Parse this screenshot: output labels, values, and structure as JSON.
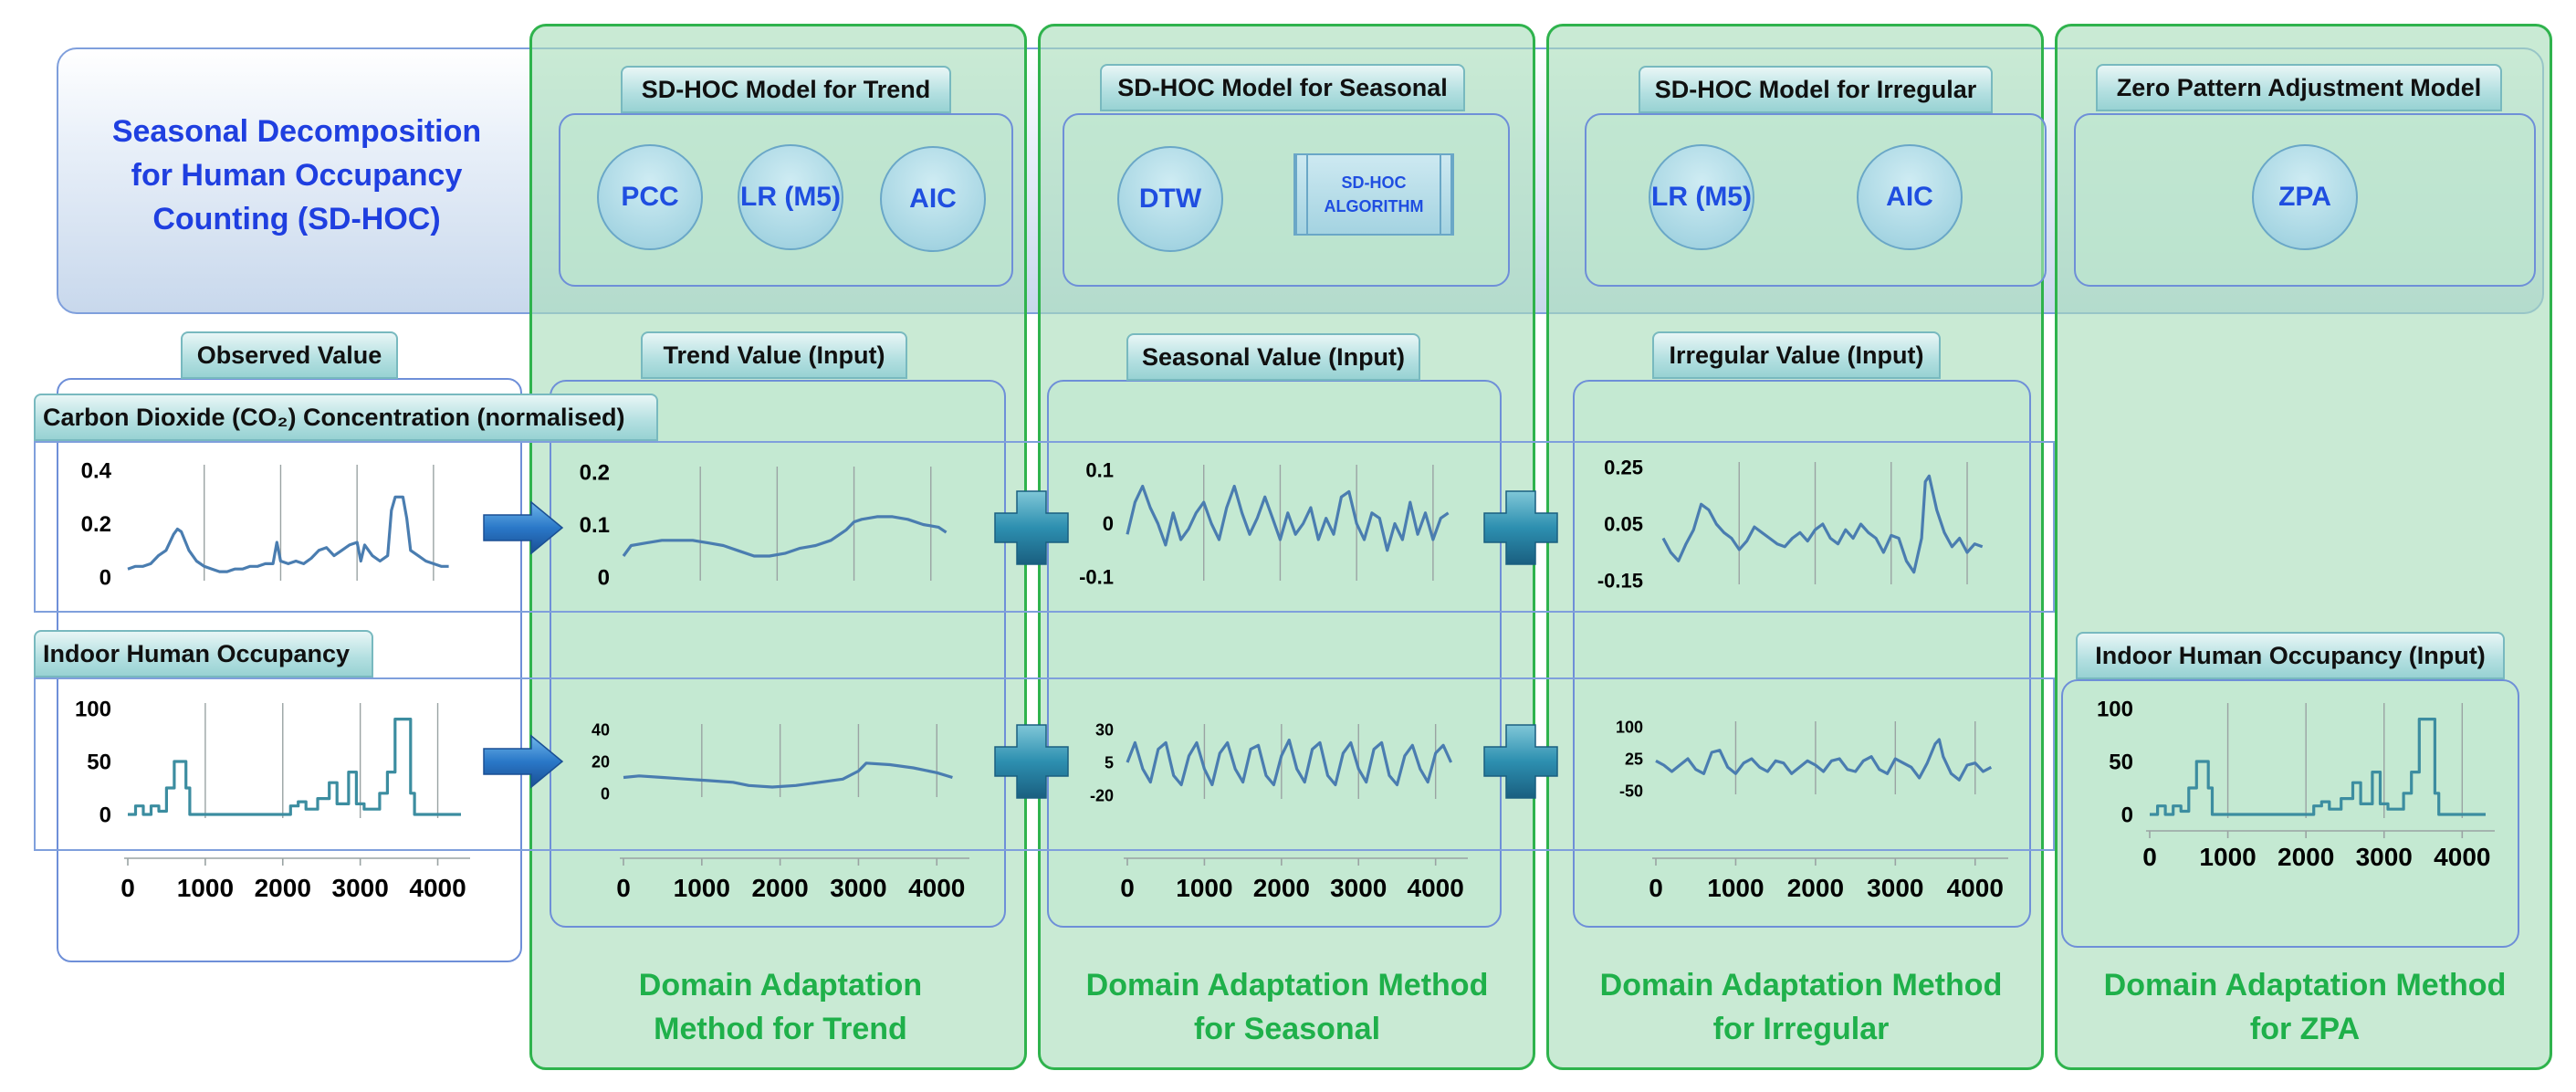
{
  "title": "Seasonal Decomposition for Human Occupancy Counting (SD-HOC)",
  "colors": {
    "accent_blue": "#1f3fe0",
    "panel_green": "#2fb34d",
    "footer_green": "#1fb04a",
    "line": "#4a7db0"
  },
  "models": {
    "trend": {
      "label": "SD-HOC Model for Trend",
      "items": [
        "PCC",
        "LR (M5)",
        "AIC"
      ]
    },
    "seasonal": {
      "label": "SD-HOC Model for Seasonal",
      "items": [
        "DTW"
      ],
      "algorithm": "SD-HOC ALGORITHM"
    },
    "irregular": {
      "label": "SD-HOC Model for Irregular",
      "items": [
        "LR (M5)",
        "AIC"
      ]
    },
    "zpa": {
      "label": "Zero Pattern Adjustment Model",
      "items": [
        "ZPA"
      ]
    }
  },
  "section_labels": {
    "observed": "Observed Value",
    "trend": "Trend Value (Input)",
    "seasonal": "Seasonal Value (Input)",
    "irregular": "Irregular Value (Input)",
    "zpa_input": "Indoor Human Occupancy (Input)"
  },
  "rows": {
    "co2": "Carbon Dioxide (CO₂) Concentration (normalised)",
    "occupancy": "Indoor Human Occupancy"
  },
  "footers": {
    "trend": "Domain Adaptation Method for Trend",
    "seasonal": "Domain Adaptation Method for Seasonal",
    "irregular": "Domain Adaptation Method for Irregular",
    "zpa": "Domain Adaptation Method for ZPA"
  },
  "icons": [
    "arrow-right-icon",
    "plus-icon"
  ],
  "chart_data": [
    {
      "type": "line",
      "id": "observed-co2",
      "xlim": [
        0,
        4300
      ],
      "yticks": [
        "0.4",
        "0.2",
        "0"
      ],
      "ylim": [
        0,
        0.4
      ],
      "x": [
        0,
        100,
        200,
        300,
        400,
        500,
        600,
        650,
        700,
        800,
        900,
        1000,
        1100,
        1200,
        1300,
        1400,
        1500,
        1600,
        1700,
        1800,
        1900,
        1950,
        2000,
        2100,
        2200,
        2300,
        2400,
        2500,
        2600,
        2700,
        2800,
        2900,
        3000,
        3050,
        3100,
        3200,
        3300,
        3400,
        3450,
        3500,
        3600,
        3650,
        3700,
        3800,
        3900,
        4000,
        4100,
        4200
      ],
      "y": [
        0.03,
        0.04,
        0.04,
        0.05,
        0.08,
        0.1,
        0.16,
        0.18,
        0.17,
        0.1,
        0.06,
        0.04,
        0.03,
        0.02,
        0.02,
        0.03,
        0.03,
        0.04,
        0.04,
        0.05,
        0.05,
        0.13,
        0.06,
        0.05,
        0.06,
        0.05,
        0.07,
        0.1,
        0.11,
        0.08,
        0.1,
        0.12,
        0.13,
        0.06,
        0.12,
        0.08,
        0.06,
        0.08,
        0.25,
        0.3,
        0.3,
        0.22,
        0.1,
        0.08,
        0.06,
        0.05,
        0.04,
        0.04
      ]
    },
    {
      "type": "line",
      "id": "trend-co2",
      "xlim": [
        0,
        4300
      ],
      "yticks": [
        "0.2",
        "0.1",
        "0"
      ],
      "ylim": [
        0,
        0.2
      ],
      "x": [
        0,
        100,
        300,
        500,
        700,
        900,
        1100,
        1300,
        1500,
        1700,
        1900,
        2100,
        2300,
        2500,
        2700,
        2900,
        3000,
        3100,
        3300,
        3500,
        3700,
        3900,
        4100,
        4200
      ],
      "y": [
        0.04,
        0.06,
        0.065,
        0.07,
        0.07,
        0.07,
        0.065,
        0.06,
        0.05,
        0.04,
        0.04,
        0.045,
        0.055,
        0.06,
        0.07,
        0.09,
        0.105,
        0.11,
        0.115,
        0.115,
        0.11,
        0.1,
        0.095,
        0.085
      ]
    },
    {
      "type": "line",
      "id": "seasonal-co2",
      "xlim": [
        0,
        4300
      ],
      "yticks": [
        "0.1",
        "0",
        "-0.1"
      ],
      "ylim": [
        -0.1,
        0.1
      ],
      "x": [
        0,
        100,
        200,
        300,
        400,
        500,
        600,
        700,
        800,
        900,
        1000,
        1100,
        1200,
        1300,
        1400,
        1500,
        1600,
        1700,
        1800,
        1900,
        2000,
        2100,
        2200,
        2300,
        2400,
        2500,
        2600,
        2700,
        2800,
        2900,
        3000,
        3100,
        3200,
        3300,
        3400,
        3500,
        3600,
        3700,
        3800,
        3900,
        4000,
        4100,
        4200
      ],
      "y": [
        -0.02,
        0.04,
        0.07,
        0.03,
        0.0,
        -0.04,
        0.02,
        -0.03,
        -0.01,
        0.02,
        0.04,
        0.0,
        -0.03,
        0.03,
        0.07,
        0.02,
        -0.02,
        0.01,
        0.05,
        0.01,
        -0.03,
        0.02,
        -0.02,
        0.0,
        0.03,
        -0.03,
        0.01,
        -0.02,
        0.05,
        0.06,
        0.0,
        -0.03,
        0.02,
        0.01,
        -0.05,
        0.0,
        -0.03,
        0.04,
        -0.02,
        0.02,
        -0.03,
        0.01,
        0.02
      ]
    },
    {
      "type": "line",
      "id": "irregular-co2",
      "xlim": [
        0,
        4300
      ],
      "yticks": [
        "0.25",
        "0.05",
        "-0.15"
      ],
      "ylim": [
        -0.15,
        0.25
      ],
      "x": [
        0,
        100,
        200,
        300,
        400,
        500,
        600,
        700,
        800,
        900,
        1000,
        1100,
        1200,
        1300,
        1400,
        1500,
        1600,
        1700,
        1800,
        1900,
        2000,
        2100,
        2200,
        2300,
        2400,
        2500,
        2600,
        2700,
        2800,
        2900,
        3000,
        3100,
        3200,
        3300,
        3400,
        3450,
        3500,
        3600,
        3700,
        3800,
        3900,
        4000,
        4100,
        4200
      ],
      "y": [
        0.0,
        -0.05,
        -0.08,
        -0.02,
        0.03,
        0.12,
        0.1,
        0.05,
        0.02,
        0.0,
        -0.04,
        -0.01,
        0.04,
        0.02,
        0.0,
        -0.02,
        -0.03,
        0.0,
        0.02,
        -0.01,
        0.03,
        0.05,
        0.0,
        -0.02,
        0.03,
        0.0,
        0.05,
        0.02,
        0.0,
        -0.05,
        0.01,
        0.0,
        -0.08,
        -0.12,
        0.0,
        0.2,
        0.22,
        0.1,
        0.02,
        -0.03,
        0.0,
        -0.05,
        -0.02,
        -0.03
      ]
    },
    {
      "type": "line",
      "id": "observed-occupancy",
      "xlim": [
        0,
        4300
      ],
      "yticks": [
        "100",
        "50",
        "0"
      ],
      "ylim": [
        0,
        100
      ],
      "xticks": [
        "0",
        "1000",
        "2000",
        "3000",
        "4000"
      ],
      "x": [
        0,
        100,
        100,
        200,
        200,
        300,
        300,
        400,
        400,
        500,
        500,
        600,
        600,
        650,
        650,
        750,
        750,
        800,
        800,
        2100,
        2100,
        2200,
        2200,
        2300,
        2300,
        2450,
        2450,
        2600,
        2600,
        2700,
        2700,
        2850,
        2850,
        2950,
        2950,
        3050,
        3050,
        3250,
        3250,
        3350,
        3350,
        3450,
        3450,
        3550,
        3550,
        3650,
        3650,
        3700,
        3700,
        4300
      ],
      "y": [
        0,
        0,
        8,
        8,
        0,
        0,
        8,
        8,
        3,
        3,
        25,
        25,
        50,
        50,
        50,
        50,
        25,
        25,
        0,
        0,
        8,
        8,
        12,
        12,
        5,
        5,
        15,
        15,
        30,
        30,
        10,
        10,
        40,
        40,
        10,
        10,
        5,
        5,
        20,
        20,
        40,
        40,
        90,
        90,
        90,
        90,
        20,
        20,
        0,
        0
      ]
    },
    {
      "type": "line",
      "id": "trend-occupancy",
      "xlim": [
        0,
        4300
      ],
      "yticks": [
        "40",
        "20",
        "0"
      ],
      "ylim": [
        0,
        40
      ],
      "xticks": [
        "0",
        "1000",
        "2000",
        "3000",
        "4000"
      ],
      "x": [
        0,
        200,
        500,
        800,
        1100,
        1400,
        1600,
        1900,
        2200,
        2500,
        2800,
        3000,
        3100,
        3400,
        3700,
        4000,
        4200
      ],
      "y": [
        10,
        11,
        10,
        9,
        8,
        7,
        5,
        4,
        5,
        7,
        9,
        14,
        19,
        18,
        16,
        13,
        10
      ]
    },
    {
      "type": "line",
      "id": "seasonal-occupancy",
      "xlim": [
        0,
        4300
      ],
      "yticks": [
        "30",
        "5",
        "-20"
      ],
      "ylim": [
        -20,
        30
      ],
      "xticks": [
        "0",
        "1000",
        "2000",
        "3000",
        "4000"
      ],
      "x": [
        0,
        100,
        200,
        300,
        400,
        500,
        600,
        700,
        800,
        900,
        1000,
        1100,
        1200,
        1300,
        1400,
        1500,
        1600,
        1700,
        1800,
        1900,
        2000,
        2100,
        2200,
        2300,
        2400,
        2500,
        2600,
        2700,
        2800,
        2900,
        3000,
        3100,
        3200,
        3300,
        3400,
        3500,
        3600,
        3700,
        3800,
        3900,
        4000,
        4100,
        4200
      ],
      "y": [
        5,
        20,
        0,
        -10,
        15,
        20,
        -5,
        -12,
        10,
        20,
        0,
        -12,
        12,
        20,
        0,
        -10,
        15,
        18,
        -5,
        -12,
        10,
        22,
        0,
        -10,
        15,
        20,
        -5,
        -12,
        12,
        20,
        0,
        -10,
        15,
        20,
        -5,
        -12,
        10,
        18,
        0,
        -10,
        12,
        18,
        5
      ]
    },
    {
      "type": "line",
      "id": "irregular-occupancy",
      "xlim": [
        0,
        4300
      ],
      "yticks": [
        "100",
        "25",
        "-50"
      ],
      "ylim": [
        -50,
        100
      ],
      "xticks": [
        "0",
        "1000",
        "2000",
        "3000",
        "4000"
      ],
      "x": [
        0,
        100,
        200,
        300,
        400,
        500,
        600,
        700,
        800,
        900,
        1000,
        1100,
        1200,
        1300,
        1400,
        1500,
        1600,
        1700,
        1800,
        1900,
        2000,
        2100,
        2200,
        2300,
        2400,
        2500,
        2600,
        2700,
        2800,
        2900,
        3000,
        3100,
        3200,
        3300,
        3400,
        3500,
        3550,
        3600,
        3700,
        3800,
        3900,
        4000,
        4100,
        4200
      ],
      "y": [
        20,
        10,
        -5,
        10,
        25,
        0,
        -10,
        40,
        45,
        5,
        -10,
        15,
        25,
        5,
        -5,
        20,
        15,
        -10,
        5,
        20,
        10,
        -5,
        20,
        25,
        0,
        -5,
        20,
        30,
        0,
        -10,
        25,
        15,
        5,
        -20,
        15,
        60,
        70,
        30,
        -10,
        -25,
        10,
        15,
        -5,
        5
      ]
    },
    {
      "type": "line",
      "id": "zpa-occupancy",
      "xlim": [
        0,
        4300
      ],
      "yticks": [
        "100",
        "50",
        "0"
      ],
      "ylim": [
        0,
        100
      ],
      "xticks": [
        "0",
        "1000",
        "2000",
        "3000",
        "4000"
      ],
      "x": [
        0,
        100,
        100,
        200,
        200,
        300,
        300,
        400,
        400,
        500,
        500,
        600,
        600,
        650,
        650,
        750,
        750,
        800,
        800,
        2100,
        2100,
        2200,
        2200,
        2300,
        2300,
        2450,
        2450,
        2600,
        2600,
        2700,
        2700,
        2850,
        2850,
        2950,
        2950,
        3050,
        3050,
        3250,
        3250,
        3350,
        3350,
        3450,
        3450,
        3550,
        3550,
        3650,
        3650,
        3700,
        3700,
        4300
      ],
      "y": [
        0,
        0,
        8,
        8,
        0,
        0,
        8,
        8,
        3,
        3,
        25,
        25,
        50,
        50,
        50,
        50,
        25,
        25,
        0,
        0,
        8,
        8,
        12,
        12,
        5,
        5,
        15,
        15,
        30,
        30,
        10,
        10,
        40,
        40,
        10,
        10,
        5,
        5,
        20,
        20,
        40,
        40,
        90,
        90,
        90,
        90,
        20,
        20,
        0,
        0
      ]
    }
  ]
}
